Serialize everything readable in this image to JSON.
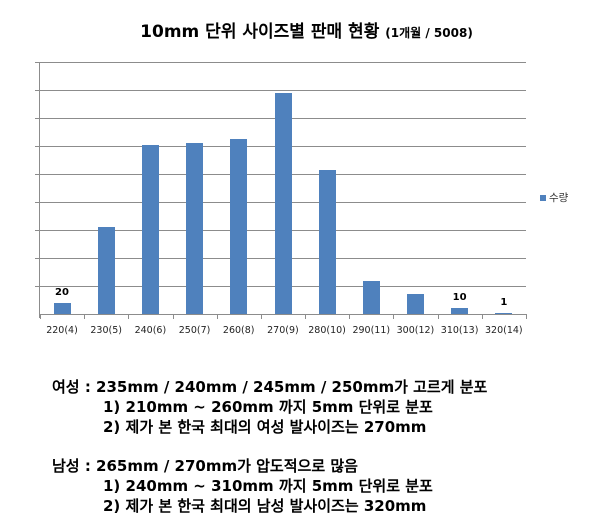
{
  "chart_data": {
    "type": "bar",
    "title": "10mm 단위 사이즈별 판매 현황",
    "subtitle": "(1개월 / 5008)",
    "xlabel": "",
    "ylabel": "",
    "ylim": [
      0,
      450
    ],
    "grid": true,
    "grid_step": 50,
    "legend_position": "right",
    "categories": [
      "220(4)",
      "230(5)",
      "240(6)",
      "250(7)",
      "260(8)",
      "270(9)",
      "280(10)",
      "290(11)",
      "300(12)",
      "310(13)",
      "320(14)"
    ],
    "series": [
      {
        "name": "수량",
        "color": "#4f81bd",
        "values": [
          20,
          155,
          301,
          305,
          313,
          394,
          258,
          59,
          35,
          10,
          1
        ]
      }
    ],
    "annotations": [
      {
        "category": "220(4)",
        "text": "20"
      },
      {
        "category": "310(13)",
        "text": "10"
      },
      {
        "category": "320(14)",
        "text": "1"
      }
    ]
  },
  "legend": {
    "label": "수량"
  },
  "notes": {
    "female": {
      "headline": "여성 : 235mm / 240mm / 245mm / 250mm가 고르게 분포",
      "line1": "1) 210mm ~ 260mm 까지 5mm 단위로 분포",
      "line2": "2) 제가 본 한국 최대의 여성 발사이즈는 270mm"
    },
    "male": {
      "headline": "남성 : 265mm / 270mm가 압도적으로 많음",
      "line1": "1) 240mm ~ 310mm 까지 5mm 단위로 분포",
      "line2": "2) 제가 본 한국 최대의 남성 발사이즈는 320mm"
    }
  }
}
